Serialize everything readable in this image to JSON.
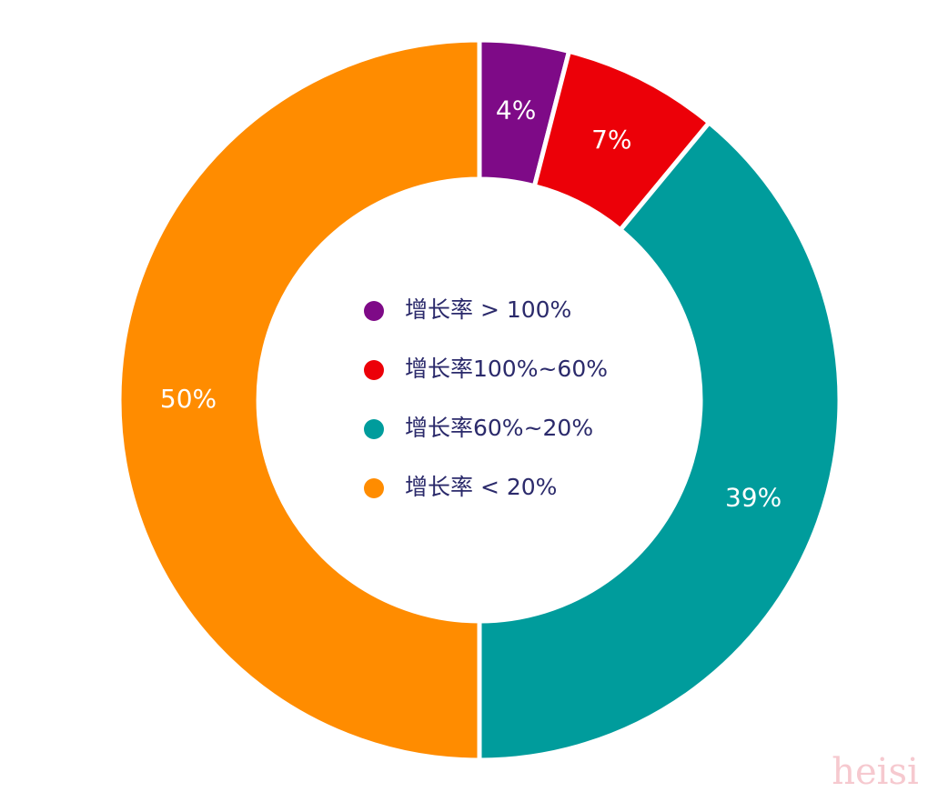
{
  "chart_data": {
    "type": "donut",
    "categories": [
      "增长率 > 100%",
      "增长率100%~60%",
      "增长率60%~20%",
      "增长率 < 20%"
    ],
    "values": [
      4,
      7,
      39,
      50
    ],
    "value_labels": [
      "4%",
      "7%",
      "39%",
      "50%"
    ],
    "colors": [
      "#7e0a87",
      "#ec0008",
      "#009c9c",
      "#ff8c00"
    ],
    "legend": "center"
  },
  "watermark": "heisi"
}
